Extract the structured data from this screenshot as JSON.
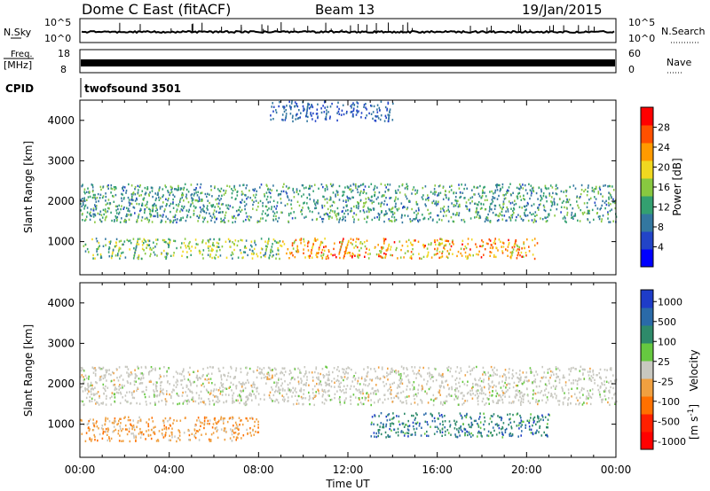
{
  "header": {
    "station": "Dome C East (fitACF)",
    "beam": "Beam 13",
    "date": "19/Jan/2015"
  },
  "top_panels": {
    "nsky_label": "N.Sky",
    "nsky_ticks": [
      "10^5",
      "10^0"
    ],
    "nsearch_label": "N.Search",
    "nsearch_ticks": [
      "10^5",
      "10^0"
    ],
    "freq_label": "Freq.",
    "freq_unit": "[MHz]",
    "freq_ticks": [
      "18",
      "8"
    ],
    "nave_label": "Nave",
    "nave_ticks": [
      "60",
      "0"
    ],
    "cpid_label": "CPID",
    "cpid_value": "twofsound 3501"
  },
  "chart_data": [
    {
      "type": "heatmap",
      "panel": "power",
      "ylabel": "Slant Range [km]",
      "ylim": [
        180,
        4500
      ],
      "yticks": [
        1000,
        2000,
        3000,
        4000
      ],
      "xlim": [
        0,
        24
      ],
      "colorbar": {
        "label": "Power [dB]",
        "range": [
          0,
          30
        ],
        "ticks": [
          "4",
          "8",
          "12",
          "16",
          "20",
          "24",
          "28"
        ],
        "colors": [
          "#0000ff",
          "#2244c8",
          "#3377a0",
          "#33a070",
          "#88c840",
          "#f0d820",
          "#ff9a00",
          "#ff5000",
          "#ff0000"
        ]
      },
      "bands": [
        {
          "range_km": [
            1500,
            2450
          ],
          "t": [
            0,
            24
          ],
          "level_dB": [
            6,
            16
          ]
        },
        {
          "range_km": [
            600,
            1100
          ],
          "t": [
            9,
            20.5
          ],
          "level_dB": [
            14,
            28
          ]
        },
        {
          "range_km": [
            600,
            1100
          ],
          "t": [
            0,
            9
          ],
          "level_dB": [
            8,
            20
          ]
        },
        {
          "range_km": [
            4000,
            4500
          ],
          "t": [
            8.5,
            14
          ],
          "level_dB": [
            4,
            10
          ]
        }
      ]
    },
    {
      "type": "heatmap",
      "panel": "velocity",
      "ylabel": "Slant Range [km]",
      "xlabel": "Time UT",
      "ylim": [
        180,
        4500
      ],
      "yticks": [
        1000,
        2000,
        3000,
        4000
      ],
      "xlim": [
        0,
        24
      ],
      "xticks": [
        "00:00",
        "04:00",
        "08:00",
        "12:00",
        "16:00",
        "20:00",
        "00:00"
      ],
      "colorbar": {
        "label": "Velocity",
        "unit_base": "[m s",
        "unit_exp": "-1",
        "unit_close": "]",
        "ticks": [
          "1000",
          "500",
          "100",
          "25",
          "-25",
          "-100",
          "-500",
          "-1000"
        ],
        "colors": [
          "#1e3cc8",
          "#2a6aa8",
          "#2e8a6a",
          "#66c840",
          "#c8c8c0",
          "#f0a040",
          "#ff7000",
          "#ff2000",
          "#ff0000"
        ]
      },
      "bands": [
        {
          "range_km": [
            1500,
            2450
          ],
          "t": [
            0,
            24
          ],
          "velocity": [
            -25,
            25
          ]
        },
        {
          "range_km": [
            600,
            1200
          ],
          "t": [
            0,
            8
          ],
          "velocity": [
            -500,
            -100
          ]
        },
        {
          "range_km": [
            700,
            1300
          ],
          "t": [
            13,
            21
          ],
          "velocity": [
            100,
            1000
          ]
        }
      ]
    }
  ]
}
